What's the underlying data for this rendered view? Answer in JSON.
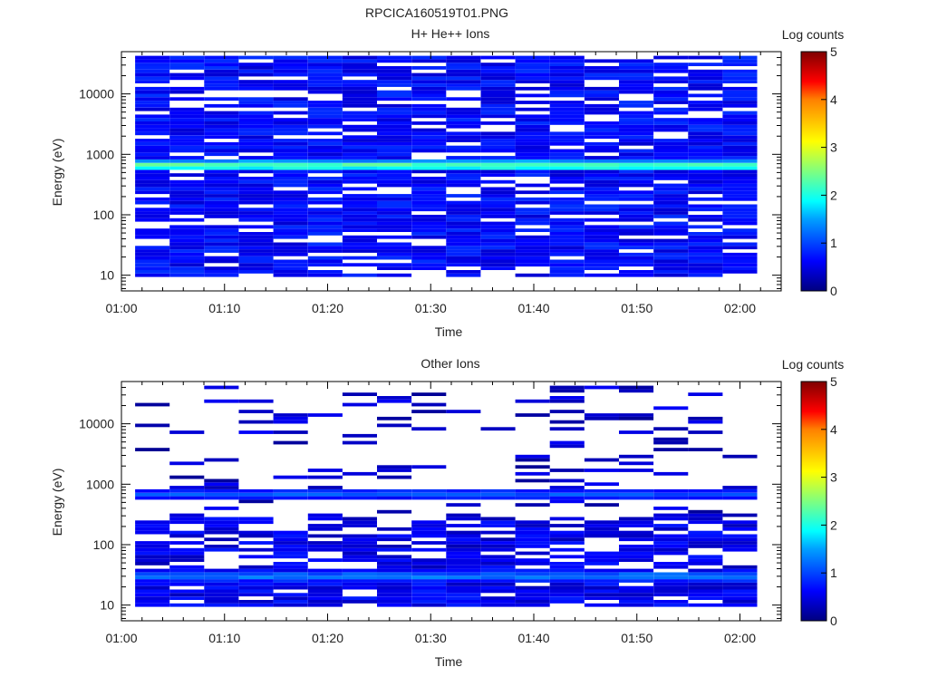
{
  "figure": {
    "title": "RPCICA160519T01.PNG"
  },
  "colors": {
    "background": "#ffffff",
    "axis": "#000000",
    "colormap": [
      "#00007f",
      "#0000ff",
      "#00a0ff",
      "#00ffff",
      "#7fff7f",
      "#ffff00",
      "#ff8000",
      "#ff0000",
      "#7f0000"
    ]
  },
  "chart_data": [
    {
      "type": "heatmap",
      "title": "H+ He++ Ions",
      "xlabel": "Time",
      "ylabel": "Energy (eV)",
      "xlim": [
        "01:00",
        "02:04"
      ],
      "x_ticks": [
        "01:00",
        "01:10",
        "01:20",
        "01:30",
        "01:40",
        "01:50",
        "02:00"
      ],
      "ylim": [
        5.5,
        50000
      ],
      "y_scale": "log",
      "y_ticks": [
        "10",
        "100",
        "1000",
        "10000"
      ],
      "data_x_range": [
        "01:03",
        "02:00"
      ],
      "time_columns": 18,
      "energy_rows": 64,
      "energy_range_eV": [
        10,
        40000
      ],
      "features": [
        {
          "energy_eV": 650,
          "log_counts": 2.5,
          "description": "band"
        }
      ],
      "colorbar": {
        "label": "Log counts",
        "min": 0,
        "max": 5,
        "ticks": [
          0,
          1,
          2,
          3,
          4,
          5
        ]
      }
    },
    {
      "type": "heatmap",
      "title": "Other Ions",
      "xlabel": "Time",
      "ylabel": "Energy (eV)",
      "xlim": [
        "01:00",
        "02:04"
      ],
      "x_ticks": [
        "01:00",
        "01:10",
        "01:20",
        "01:30",
        "01:40",
        "01:50",
        "02:00"
      ],
      "ylim": [
        5.5,
        50000
      ],
      "y_scale": "log",
      "y_ticks": [
        "10",
        "100",
        "1000",
        "10000"
      ],
      "data_x_range": [
        "01:03",
        "02:00"
      ],
      "time_columns": 18,
      "energy_rows": 64,
      "energy_range_eV": [
        10,
        40000
      ],
      "features": [
        {
          "energy_eV": 30,
          "log_counts": 1.4
        },
        {
          "energy_eV": 680,
          "log_counts": 1.1
        }
      ],
      "colorbar": {
        "label": "Log counts",
        "min": 0,
        "max": 5,
        "ticks": [
          0,
          1,
          2,
          3,
          4,
          5
        ]
      }
    }
  ]
}
